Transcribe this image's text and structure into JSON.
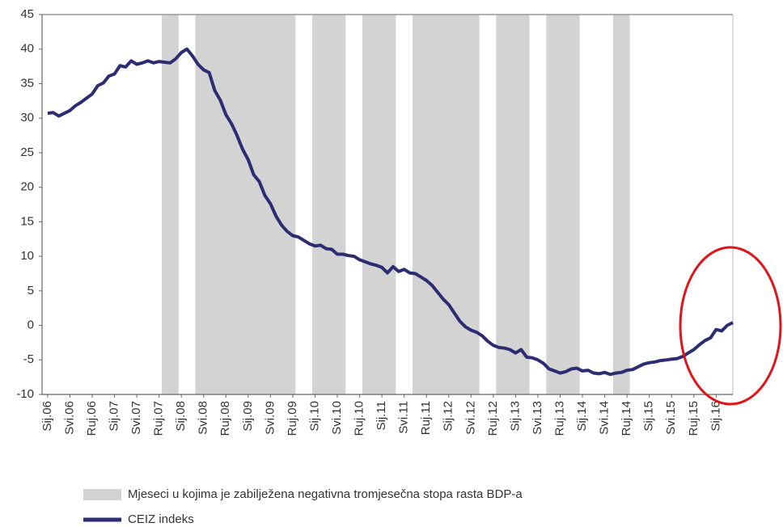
{
  "chart_data": {
    "type": "line",
    "categories": [
      "Sij.06",
      null,
      null,
      null,
      "Svi.06",
      null,
      null,
      null,
      "Ruj.06",
      null,
      null,
      null,
      "Sij.07",
      null,
      null,
      null,
      "Svi.07",
      null,
      null,
      null,
      "Ruj.07",
      null,
      null,
      null,
      "Sij.08",
      null,
      null,
      null,
      "Svi.08",
      null,
      null,
      null,
      "Ruj.08",
      null,
      null,
      null,
      "Sij.09",
      null,
      null,
      null,
      "Svi.09",
      null,
      null,
      null,
      "Ruj.09",
      null,
      null,
      null,
      "Sij.10",
      null,
      null,
      null,
      "Svi.10",
      null,
      null,
      null,
      "Ruj.10",
      null,
      null,
      null,
      "Sij.11",
      null,
      null,
      null,
      "Svi.11",
      null,
      null,
      null,
      "Ruj.11",
      null,
      null,
      null,
      "Sij.12",
      null,
      null,
      null,
      "Svi.12",
      null,
      null,
      null,
      "Ruj.12",
      null,
      null,
      null,
      "Sij.13",
      null,
      null,
      null,
      "Svi.13",
      null,
      null,
      null,
      "Ruj.13",
      null,
      null,
      null,
      "Sij.14",
      null,
      null,
      null,
      "Svi.14",
      null,
      null,
      null,
      "Ruj.14",
      null,
      null,
      null,
      "Sij.15",
      null,
      null,
      null,
      "Svi.15",
      null,
      null,
      null,
      "Ruj.15",
      null,
      null,
      null,
      "Sij.16",
      null,
      null,
      null
    ],
    "series": [
      {
        "name": "CEIZ indeks",
        "color": "#2d2b72",
        "values": [
          30.7,
          30.8,
          30.3,
          30.7,
          31.1,
          31.8,
          32.3,
          32.9,
          33.5,
          34.7,
          35.1,
          36.1,
          36.4,
          37.6,
          37.4,
          38.3,
          37.8,
          38,
          38.3,
          38,
          38.2,
          38.1,
          38,
          38.6,
          39.5,
          40,
          39,
          37.8,
          37,
          36.6,
          34,
          32.6,
          30.5,
          29.2,
          27.5,
          25.5,
          24,
          21.8,
          20.8,
          18.8,
          17.6,
          15.8,
          14.5,
          13.6,
          13,
          12.8,
          12.3,
          11.8,
          11.5,
          11.6,
          11.1,
          11,
          10.3,
          10.3,
          10.1,
          10,
          9.5,
          9.2,
          8.9,
          8.7,
          8.4,
          7.6,
          8.5,
          7.8,
          8.1,
          7.6,
          7.5,
          7,
          6.5,
          5.8,
          4.8,
          3.8,
          3,
          1.8,
          0.6,
          -0.2,
          -0.7,
          -1,
          -1.5,
          -2.3,
          -2.9,
          -3.2,
          -3.3,
          -3.5,
          -4,
          -3.5,
          -4.6,
          -4.7,
          -5,
          -5.5,
          -6.3,
          -6.6,
          -6.9,
          -6.7,
          -6.3,
          -6.2,
          -6.6,
          -6.5,
          -6.9,
          -7,
          -6.8,
          -7.1,
          -6.9,
          -6.8,
          -6.5,
          -6.4,
          -6,
          -5.6,
          -5.4,
          -5.3,
          -5.1,
          -5,
          -4.9,
          -4.8,
          -4.5,
          -4,
          -3.5,
          -2.8,
          -2.2,
          -1.8,
          -0.6,
          -0.8,
          0,
          0.4
        ]
      }
    ],
    "bands": {
      "name": "Mjeseci u kojima je zabilježena negativna tromjesečna stopa rasta BDP-a",
      "color": "#d3d3d3",
      "ranges": [
        [
          20.5,
          23.5
        ],
        [
          26.5,
          44.5
        ],
        [
          47.5,
          53.5
        ],
        [
          56.5,
          62.5
        ],
        [
          65.5,
          77.5
        ],
        [
          80.5,
          86.5
        ],
        [
          89.5,
          95.5
        ],
        [
          101.5,
          104.5
        ]
      ]
    },
    "ylim": [
      -10,
      45
    ],
    "yticks": [
      -10,
      -5,
      0,
      5,
      10,
      15,
      20,
      25,
      30,
      35,
      40,
      45
    ]
  }
}
